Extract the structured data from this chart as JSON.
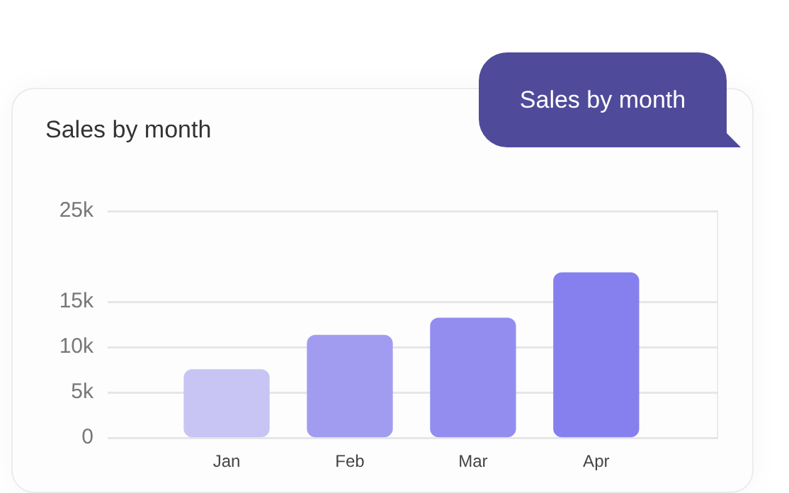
{
  "chart_data": {
    "type": "bar",
    "title": "Sales by month",
    "annotations": [
      "Sales by month"
    ],
    "categories": [
      "Jan",
      "Feb",
      "Mar",
      "Apr"
    ],
    "values": [
      7500,
      11300,
      13200,
      18200
    ],
    "colors": [
      "#c8c5f5",
      "#a29cf0",
      "#948df0",
      "#8680ee"
    ],
    "ylim": [
      0,
      25000
    ],
    "yticks": [
      0,
      {
        "value": 5000,
        "label": "5k"
      },
      {
        "value": 10000,
        "label": "10k"
      },
      {
        "value": 15000,
        "label": "15k"
      },
      {
        "value": 25000,
        "label": "25k"
      }
    ],
    "grid": "y"
  }
}
